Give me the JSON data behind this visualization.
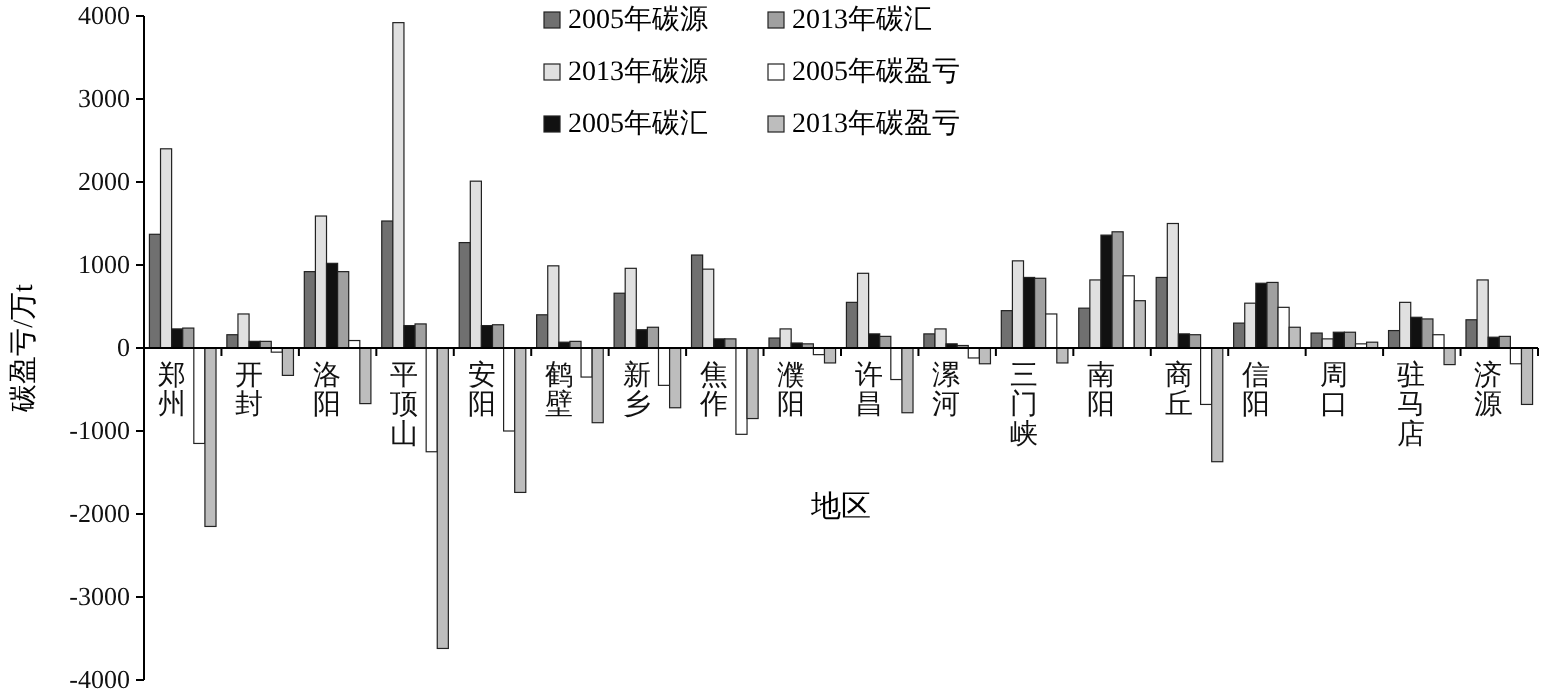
{
  "chart_data": {
    "type": "bar",
    "xlabel": "地区",
    "ylabel": "碳盈亏/万t",
    "categories": [
      "郑州",
      "开封",
      "洛阳",
      "平顶山",
      "安阳",
      "鹤壁",
      "新乡",
      "焦作",
      "濮阳",
      "许昌",
      "漯河",
      "三门峡",
      "南阳",
      "商丘",
      "信阳",
      "周口",
      "驻马店",
      "济源"
    ],
    "series": [
      {
        "name": "2005年碳源",
        "color": "#707070",
        "values": [
          1370,
          160,
          920,
          1530,
          1270,
          400,
          660,
          1120,
          120,
          550,
          170,
          450,
          480,
          850,
          300,
          180,
          210,
          340
        ]
      },
      {
        "name": "2013年碳源",
        "color": "#e0e0e0",
        "values": [
          2400,
          410,
          1590,
          3920,
          2010,
          990,
          960,
          950,
          230,
          900,
          230,
          1050,
          820,
          1500,
          540,
          110,
          550,
          820
        ]
      },
      {
        "name": "2005年碳汇",
        "color": "#111111",
        "values": [
          230,
          80,
          1020,
          270,
          270,
          70,
          220,
          110,
          60,
          170,
          50,
          850,
          1360,
          170,
          780,
          190,
          370,
          130
        ]
      },
      {
        "name": "2013年碳汇",
        "color": "#a0a0a0",
        "values": [
          240,
          80,
          920,
          290,
          280,
          80,
          250,
          110,
          50,
          140,
          30,
          840,
          1400,
          160,
          790,
          190,
          350,
          140
        ]
      },
      {
        "name": "2005年碳盈亏",
        "color": "#ffffff",
        "values": [
          -1150,
          -50,
          90,
          -1250,
          -1000,
          -350,
          -450,
          -1040,
          -80,
          -380,
          -120,
          410,
          870,
          -680,
          490,
          50,
          160,
          -190
        ]
      },
      {
        "name": "2013年碳盈亏",
        "color": "#bdbdbd",
        "values": [
          -2150,
          -330,
          -670,
          -3620,
          -1740,
          -900,
          -720,
          -850,
          -180,
          -780,
          -190,
          -180,
          570,
          -1370,
          250,
          70,
          -200,
          -680
        ]
      }
    ],
    "ylim": [
      -4000,
      4000
    ],
    "yticks": [
      -4000,
      -3000,
      -2000,
      -1000,
      0,
      1000,
      2000,
      3000,
      4000
    ],
    "legend": "top"
  }
}
